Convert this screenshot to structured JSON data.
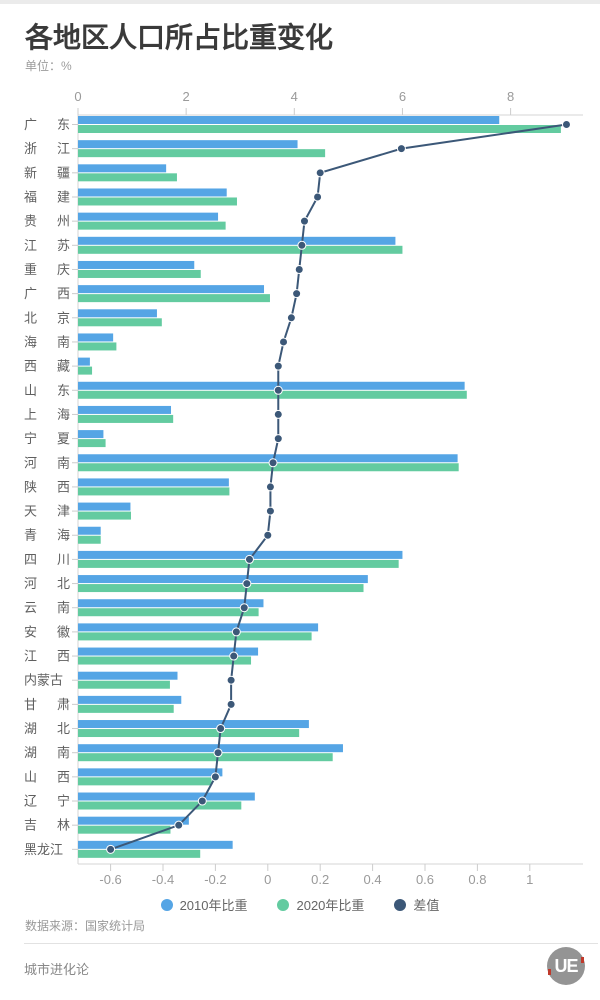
{
  "header": {
    "title": "各地区人口所占比重变化",
    "unit_label": "单位：%"
  },
  "chart_data": {
    "type": "bar",
    "orientation": "horizontal",
    "title": "各地区人口所占比重变化",
    "unit": "%",
    "grid": false,
    "categories": [
      "广东",
      "浙江",
      "新疆",
      "福建",
      "贵州",
      "江苏",
      "重庆",
      "广西",
      "北京",
      "海南",
      "西藏",
      "山东",
      "上海",
      "宁夏",
      "河南",
      "陕西",
      "天津",
      "青海",
      "四川",
      "河北",
      "云南",
      "安徽",
      "江西",
      "内蒙古",
      "甘肃",
      "湖北",
      "湖南",
      "山西",
      "辽宁",
      "吉林",
      "黑龙江"
    ],
    "series": [
      {
        "name": "2010年比重",
        "color": "#55a5e5",
        "values": [
          7.79,
          4.06,
          1.63,
          2.75,
          2.59,
          5.87,
          2.15,
          3.44,
          1.46,
          0.65,
          0.22,
          7.15,
          1.72,
          0.47,
          7.02,
          2.79,
          0.97,
          0.42,
          6.0,
          5.36,
          3.43,
          4.44,
          3.33,
          1.84,
          1.91,
          4.27,
          4.9,
          2.67,
          3.27,
          2.05,
          2.86
        ]
      },
      {
        "name": "2020年比重",
        "color": "#63cba0",
        "values": [
          8.93,
          4.57,
          1.83,
          2.94,
          2.73,
          6.0,
          2.27,
          3.55,
          1.55,
          0.71,
          0.26,
          7.19,
          1.76,
          0.51,
          7.04,
          2.8,
          0.98,
          0.42,
          5.93,
          5.28,
          3.34,
          4.32,
          3.2,
          1.7,
          1.77,
          4.09,
          4.71,
          2.47,
          3.02,
          1.71,
          2.26
        ]
      }
    ],
    "line_series": {
      "name": "差值",
      "color": "#3c5878",
      "values": [
        1.14,
        0.51,
        0.2,
        0.19,
        0.14,
        0.13,
        0.12,
        0.11,
        0.09,
        0.06,
        0.04,
        0.04,
        0.04,
        0.04,
        0.02,
        0.01,
        0.01,
        0.0,
        -0.07,
        -0.08,
        -0.09,
        -0.12,
        -0.13,
        -0.14,
        -0.14,
        -0.18,
        -0.19,
        -0.2,
        -0.25,
        -0.34,
        -0.6
      ]
    },
    "bar_axis": {
      "position": "top",
      "ticks": [
        0,
        2,
        4,
        6,
        8
      ],
      "tick_labels": [
        "0",
        "2",
        "4",
        "6",
        "8"
      ],
      "min": 0,
      "max": 9.34
    },
    "diff_axis": {
      "position": "bottom",
      "ticks": [
        -0.6,
        -0.4,
        -0.2,
        0,
        0.2,
        0.4,
        0.6,
        0.8,
        1
      ],
      "tick_labels": [
        "-0.6",
        "-0.4",
        "-0.2",
        "0",
        "0.2",
        "0.4",
        "0.6",
        "0.8",
        "1"
      ],
      "min": -0.725,
      "max": 1.203
    },
    "legend_position": "bottom"
  },
  "legend": {
    "items": [
      {
        "label": "2010年比重",
        "color": "#55a5e5",
        "shape": "circle"
      },
      {
        "label": "2020年比重",
        "color": "#63cba0",
        "shape": "circle"
      },
      {
        "label": "差值",
        "color": "#3c5878",
        "shape": "circle"
      }
    ]
  },
  "footer": {
    "source": "数据来源：国家统计局",
    "brand": "城市进化论",
    "logo_text": "UE"
  }
}
